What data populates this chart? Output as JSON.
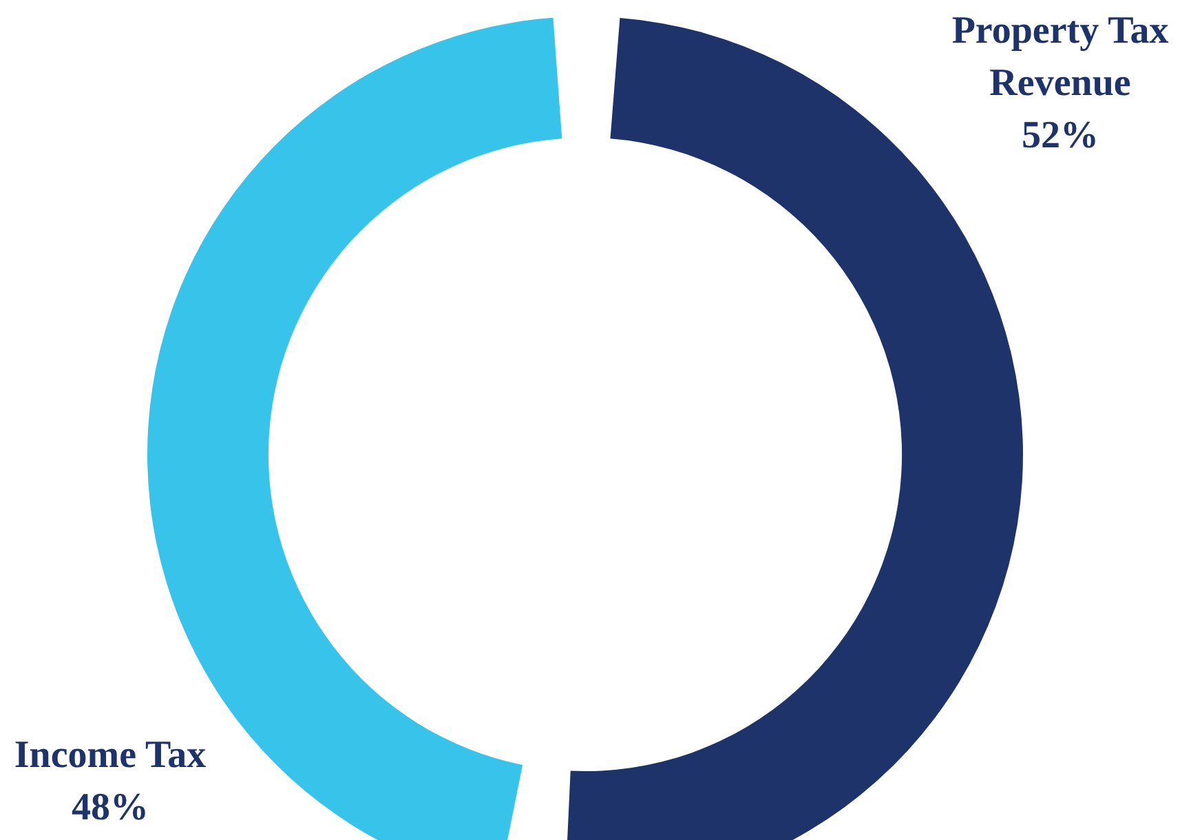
{
  "chart_data": {
    "type": "donut",
    "categories": [
      "Property Tax Revenue",
      "Income Tax"
    ],
    "values": [
      52,
      48
    ],
    "colors": [
      "#1e3369",
      "#38c4ea"
    ],
    "value_labels": [
      "52%",
      "48%"
    ]
  }
}
